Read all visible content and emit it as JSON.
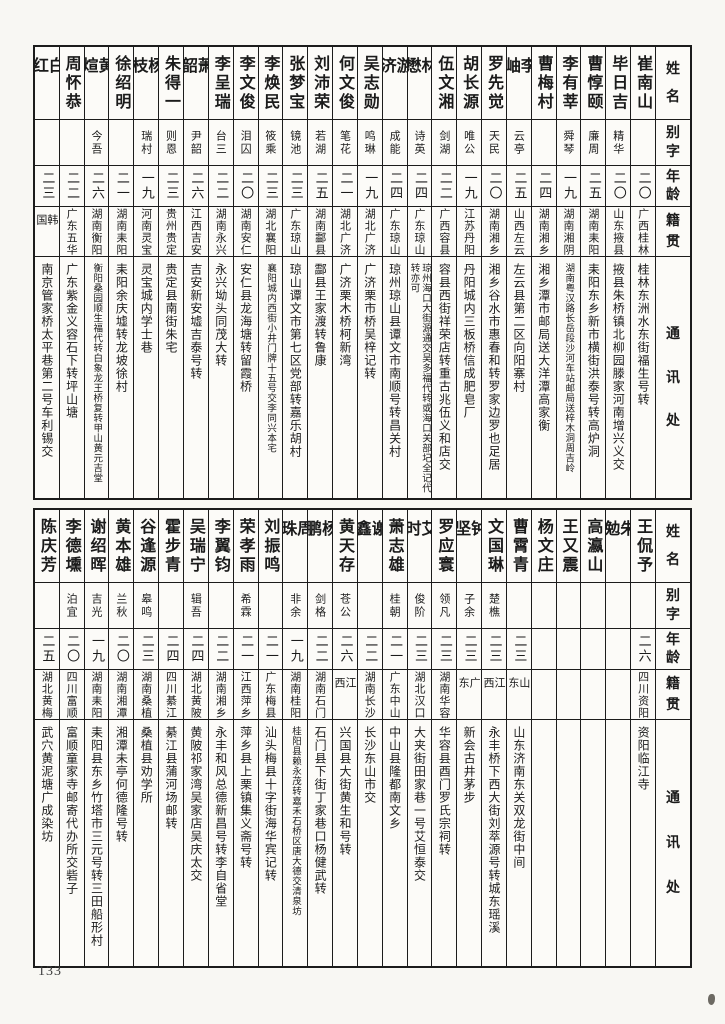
{
  "page": {
    "number": "133"
  },
  "style": {
    "paper": "#f8f7f3",
    "ink": "#1b1b1b",
    "border": "#1c1c1c"
  },
  "headers": {
    "name": "姓名",
    "zi": "别字",
    "age": "年龄",
    "origin": "籍贯",
    "address": "通讯处"
  },
  "tables": [
    {
      "people": [
        {
          "name": "崔南山",
          "zi": "",
          "age": "二〇",
          "origin": "广西桂林",
          "address": "桂林东洲水东街福生号转"
        },
        {
          "name": "毕日吉",
          "zi": "精华",
          "age": "二〇",
          "origin": "山东掖县",
          "address": "掖县朱桥镇北柳园滕家河南增兴义交"
        },
        {
          "name": "曹惇颐",
          "zi": "廉周",
          "age": "二五",
          "origin": "湖南耒阳",
          "address": "耒阳东乡新市横街洪泰号转高炉洞"
        },
        {
          "name": "李有莘",
          "zi": "舜琴",
          "age": "一九",
          "origin": "湖南湘阴",
          "address": "湖南粤汉路长岳段沙河车站邮局送梓木洞周吉岭"
        },
        {
          "name": "曹梅村",
          "zi": "",
          "age": "二四",
          "origin": "湖南湘乡",
          "address": "湘乡潭市邮局送大洋潭高家衡"
        },
        {
          "name": "李岫",
          "zi": "云亭",
          "age": "二五",
          "origin": "山西左云",
          "address": "左云县第二区向阳寨村"
        },
        {
          "name": "罗先觉",
          "zi": "天民",
          "age": "二〇",
          "origin": "湖南湘乡",
          "address": "湘乡谷水市惠春和转罗家边罗也足居"
        },
        {
          "name": "胡长源",
          "zi": "唯公",
          "age": "一九",
          "origin": "江苏丹阳",
          "address": "丹阳城内三板桥信成肥皂厂"
        },
        {
          "name": "伍文湘",
          "zi": "剑湖",
          "age": "二二",
          "origin": "广西容县",
          "address": "容县西街祥荣店转重古兆伍义和店交"
        },
        {
          "name": "林懋",
          "zi": "诗英",
          "age": "二四",
          "origin": "广东琼山",
          "address": "琼州海口大街源通交吴多福代转或海口关部圮全记代转亦可"
        },
        {
          "name": "游济",
          "zi": "成能",
          "age": "二四",
          "origin": "广东琼山",
          "address": "琼州琼山县谭文市南顺号转昌关村"
        },
        {
          "name": "吴志勋",
          "zi": "鸣琳",
          "age": "一九",
          "origin": "湖北广济",
          "address": "广济栗市桥吴梓记转"
        },
        {
          "name": "何文俊",
          "zi": "笔花",
          "age": "二一",
          "origin": "湖北广济",
          "address": "广济栗木桥柯新湾"
        },
        {
          "name": "刘沛荣",
          "zi": "若湖",
          "age": "二五",
          "origin": "湖南酃县",
          "address": "酃县王家渡转鲁康"
        },
        {
          "name": "张梦宝",
          "zi": "镜池",
          "age": "二三",
          "origin": "广东琼山",
          "address": "琼山谭文市第七区党部转嘉乐胡村"
        },
        {
          "name": "李焕民",
          "zi": "筱乘",
          "age": "二三",
          "origin": "湖北襄阳",
          "address": "襄阳城内西街小井门牌十五号交李同兴本宅"
        },
        {
          "name": "李文俊",
          "zi": "泪囚",
          "age": "二〇",
          "origin": "湖南安仁",
          "address": "安仁县龙海塘转留霞桥"
        },
        {
          "name": "李呈瑞",
          "zi": "台三",
          "age": "二二",
          "origin": "湖南永兴",
          "address": "永兴坳头同茂大转"
        },
        {
          "name": "萧韶",
          "zi": "尹韶",
          "age": "二六",
          "origin": "江西吉安",
          "address": "吉安新安墟吉泰号转"
        },
        {
          "name": "朱得一",
          "zi": "则恩",
          "age": "二三",
          "origin": "贵州贵定",
          "address": "贵定县南街朱宅"
        },
        {
          "name": "杨枝",
          "zi": "瑞村",
          "age": "一九",
          "origin": "河南灵宝",
          "address": "灵宝城内学士巷"
        },
        {
          "name": "徐绍明",
          "zi": "",
          "age": "二一",
          "origin": "湖南耒阳",
          "address": "耒阳余庆墟转龙坡徐村"
        },
        {
          "name": "黄煊",
          "zi": "今吾",
          "age": "二六",
          "origin": "湖南衡阳",
          "address": "衡阳桑园顺生福代转白象龙王桥复转甲山黄元吉堂"
        },
        {
          "name": "周怀恭",
          "zi": "",
          "age": "二二",
          "origin": "广东五华",
          "address": "广东紫金义容石下转坪山塘"
        },
        {
          "name": "白红",
          "zi": "",
          "age": "二三",
          "origin": "韩国",
          "address": "南京管家桥太平巷第二号车利锡交"
        }
      ]
    },
    {
      "people": [
        {
          "name": "王侃予",
          "zi": "",
          "age": "二六",
          "origin": "四川资阳",
          "address": "资阳临江寺"
        },
        {
          "name": "朱勉",
          "zi": "",
          "age": "",
          "origin": "",
          "address": ""
        },
        {
          "name": "高瀛山",
          "zi": "",
          "age": "",
          "origin": "",
          "address": ""
        },
        {
          "name": "王又震",
          "zi": "",
          "age": "",
          "origin": "",
          "address": ""
        },
        {
          "name": "杨文庄",
          "zi": "",
          "age": "",
          "origin": "",
          "address": ""
        },
        {
          "name": "曹霄青",
          "zi": "",
          "age": "二三",
          "origin": "山东",
          "address": "山东济南东关双龙街中间"
        },
        {
          "name": "文国琳",
          "zi": "楚樵",
          "age": "二三",
          "origin": "江西",
          "address": "永丰桥下西大街刘萃源号转城东瑶溪"
        },
        {
          "name": "钟坚",
          "zi": "子余",
          "age": "二三",
          "origin": "广东",
          "address": "新会古井茅步"
        },
        {
          "name": "罗应寰",
          "zi": "领凡",
          "age": "二三",
          "origin": "湖南华容",
          "address": "华容县酉门罗氏宗祠转"
        },
        {
          "name": "艾时",
          "zi": "俊阶",
          "age": "二三",
          "origin": "湖北汉口",
          "address": "大夹街田家巷一号艾恒泰交"
        },
        {
          "name": "萧志雄",
          "zi": "桂朝",
          "age": "二一",
          "origin": "广东中山",
          "address": "中山县隆都南文乡"
        },
        {
          "name": "谢鑫",
          "zi": "",
          "age": "二二",
          "origin": "湖南长沙",
          "address": "长沙东山市交"
        },
        {
          "name": "黄天存",
          "zi": "苍公",
          "age": "二六",
          "origin": "江西",
          "address": "兴国县大街黄生和号转"
        },
        {
          "name": "杨鹏",
          "zi": "剑格",
          "age": "二二",
          "origin": "湖南石门",
          "address": "石门县下街丁家巷口杨健武转"
        },
        {
          "name": "周珠",
          "zi": "非余",
          "age": "一九",
          "origin": "湖南桂阳",
          "address": "桂阳县赖永茂转嘉禾石桥区唐大德交清泉坊"
        },
        {
          "name": "刘振鸣",
          "zi": "",
          "age": "二一",
          "origin": "广东梅县",
          "address": "汕头梅县十字街海华宾记转"
        },
        {
          "name": "荣孝雨",
          "zi": "希霖",
          "age": "二一",
          "origin": "江西萍乡",
          "address": "萍乡县上栗镇集义斋号转"
        },
        {
          "name": "李翼钧",
          "zi": "",
          "age": "二二",
          "origin": "湖南湘乡",
          "address": "永丰和风总德新昌号转李自省堂"
        },
        {
          "name": "吴瑞宁",
          "zi": "辑吾",
          "age": "二四",
          "origin": "湖北黄陂",
          "address": "黄陂祁家湾吴家店吴庆太交"
        },
        {
          "name": "霍步青",
          "zi": "",
          "age": "二四",
          "origin": "四川綦江",
          "address": "綦江县蒲河场邮转"
        },
        {
          "name": "谷逢源",
          "zi": "皋鸣",
          "age": "二三",
          "origin": "湖南桑植",
          "address": "桑植县劝学所"
        },
        {
          "name": "黄本雄",
          "zi": "兰秋",
          "age": "二〇",
          "origin": "湖南湘潭",
          "address": "湘潭未亭何德隆号转"
        },
        {
          "name": "谢绍晖",
          "zi": "吉光",
          "age": "一九",
          "origin": "湖南耒阳",
          "address": "耒阳县东乡竹塔市三元号转三田船形村"
        },
        {
          "name": "李德壎",
          "zi": "泊宜",
          "age": "二〇",
          "origin": "四川富顺",
          "address": "富顺童家寺邮寄代办所交砦子"
        },
        {
          "name": "陈庆芳",
          "zi": "",
          "age": "二五",
          "origin": "湖北黄梅",
          "address": "武穴黄泥塘广成染坊"
        }
      ]
    }
  ]
}
